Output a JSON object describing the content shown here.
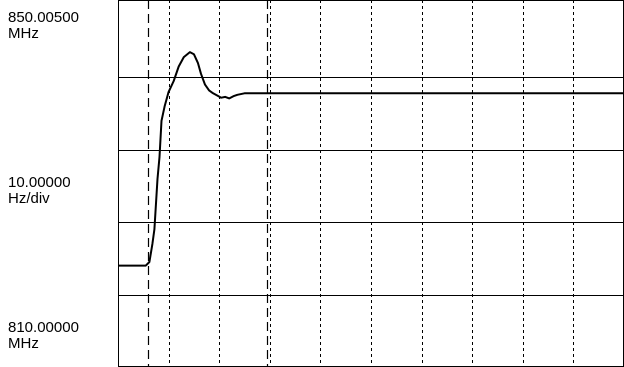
{
  "labels": {
    "top_value": "850.00500",
    "top_unit": "MHz",
    "scale_value": "10.00000",
    "scale_unit": "Hz/div",
    "bottom_value": "810.00000",
    "bottom_unit": "MHz"
  },
  "chart_data": {
    "type": "line",
    "title": "",
    "xlabel": "",
    "ylabel": "",
    "x_divisions": 10,
    "y_divisions": 5,
    "ylim": [
      0,
      5
    ],
    "xlim": [
      0,
      10
    ],
    "grid": true,
    "markers": [
      0.6,
      2.95
    ],
    "series": [
      {
        "values": [
          [
            0,
            1.4
          ],
          [
            0.55,
            1.4
          ],
          [
            0.62,
            1.45
          ],
          [
            0.68,
            1.7
          ],
          [
            0.72,
            1.9
          ],
          [
            0.78,
            2.6
          ],
          [
            0.82,
            2.9
          ],
          [
            0.86,
            3.4
          ],
          [
            0.92,
            3.6
          ],
          [
            1.0,
            3.8
          ],
          [
            1.1,
            3.95
          ],
          [
            1.2,
            4.15
          ],
          [
            1.3,
            4.28
          ],
          [
            1.42,
            4.35
          ],
          [
            1.5,
            4.32
          ],
          [
            1.58,
            4.2
          ],
          [
            1.64,
            4.05
          ],
          [
            1.72,
            3.9
          ],
          [
            1.8,
            3.82
          ],
          [
            1.88,
            3.78
          ],
          [
            1.96,
            3.75
          ],
          [
            2.04,
            3.72
          ],
          [
            2.12,
            3.73
          ],
          [
            2.2,
            3.71
          ],
          [
            2.28,
            3.74
          ],
          [
            2.36,
            3.76
          ],
          [
            2.5,
            3.78
          ],
          [
            3.0,
            3.78
          ],
          [
            4.0,
            3.78
          ],
          [
            5.0,
            3.78
          ],
          [
            6.0,
            3.78
          ],
          [
            7.0,
            3.78
          ],
          [
            8.0,
            3.78
          ],
          [
            9.0,
            3.78
          ],
          [
            10.0,
            3.78
          ]
        ]
      }
    ]
  }
}
